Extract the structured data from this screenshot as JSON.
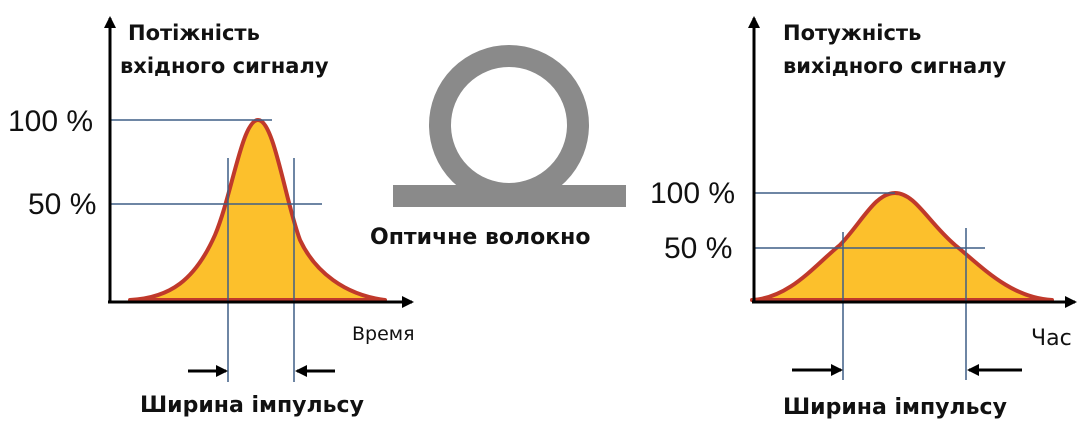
{
  "colors": {
    "axis": "#000000",
    "guide": "#3f5f86",
    "pulse_fill": "#fcc02c",
    "pulse_stroke": "#c0392b",
    "fiber": "#8a8a8a",
    "text": "#111111"
  },
  "input_panel": {
    "ylabel_line1": "Потіжність",
    "ylabel_line2": "вхідного сигналу",
    "level_100": "100 %",
    "level_50": "50 %",
    "xlabel": "Время",
    "width_label": "Ширина імпульсу"
  },
  "fiber": {
    "label": "Оптичне волокно"
  },
  "output_panel": {
    "ylabel_line1": "Потужність",
    "ylabel_line2": "вихідного сигналу",
    "level_100": "100 %",
    "level_50": "50 %",
    "xlabel": "Час",
    "width_label": "Ширина імпульсу"
  }
}
